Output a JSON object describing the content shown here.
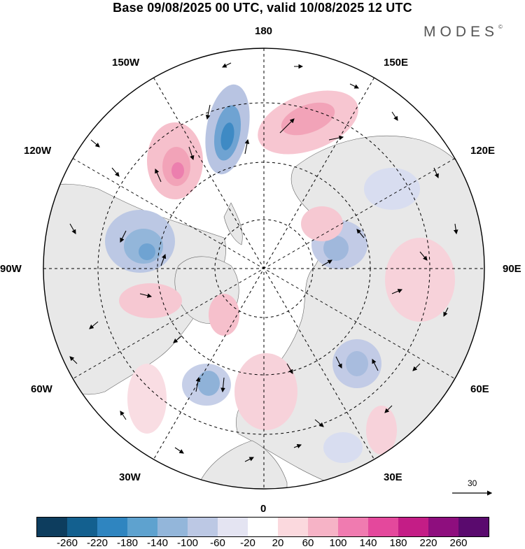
{
  "title": "Base 09/08/2025 00 UTC, valid 10/08/2025 12 UTC",
  "brand": "MODES",
  "brand_mark": "©",
  "longitude_labels": {
    "top": "180",
    "top_right": "150E",
    "right_upper": "120E",
    "right": "90E",
    "right_lower": "60E",
    "bottom_right": "30E",
    "bottom": "0",
    "bottom_left": "30W",
    "left_lower": "60W",
    "left": "90W",
    "left_upper": "120W",
    "top_left": "150W"
  },
  "vector_reference": {
    "value": "30",
    "icon": "arrow-right-icon"
  },
  "colorbar": {
    "colors": [
      "#0d3d5e",
      "#13608f",
      "#2f85c0",
      "#5ea2cf",
      "#93b6da",
      "#bcc8e4",
      "#e4e4f2",
      "#ffffff",
      "#fbd9de",
      "#f6b3c6",
      "#f07bb0",
      "#e4489c",
      "#c41d86",
      "#8e0e7e",
      "#5a0a6e"
    ],
    "tick_labels": [
      "-260",
      "-220",
      "-180",
      "-140",
      "-100",
      "-60",
      "-20",
      "20",
      "60",
      "100",
      "140",
      "180",
      "220",
      "260"
    ]
  },
  "colors": {
    "land": "#e9e9e9",
    "ocean": "#ffffff",
    "grid": "#000000"
  }
}
